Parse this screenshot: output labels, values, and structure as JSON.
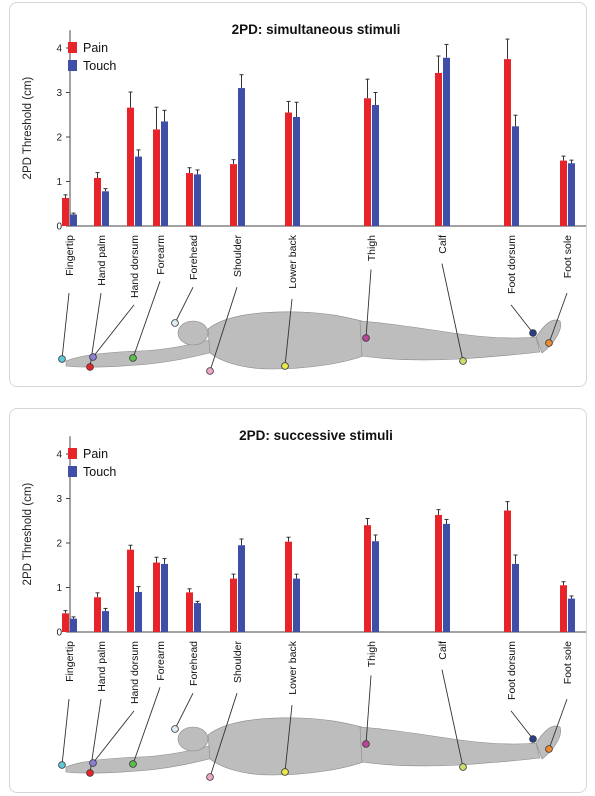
{
  "chart_data": [
    {
      "type": "bar",
      "title": "2PD: simultaneous stimuli",
      "ylabel": "2PD Threshold (cm)",
      "xlabel": "",
      "ylim": [
        0,
        4.4
      ],
      "yticks": [
        0,
        1,
        2,
        3,
        4
      ],
      "legend": "top-left",
      "grid": false,
      "categories": [
        "Fingertip",
        "Hand palm",
        "Hand dorsum",
        "Forearm",
        "Forehead",
        "Shoulder",
        "Lower back",
        "Thigh",
        "Calf",
        "Foot dorsum",
        "Foot sole"
      ],
      "series": [
        {
          "name": "Pain",
          "color": "#e8242b",
          "values": [
            0.63,
            1.08,
            2.66,
            2.17,
            1.19,
            1.39,
            2.55,
            2.87,
            3.44,
            3.75,
            1.47
          ],
          "errors": [
            0.07,
            0.12,
            0.35,
            0.5,
            0.12,
            0.1,
            0.25,
            0.43,
            0.38,
            0.45,
            0.1
          ]
        },
        {
          "name": "Touch",
          "color": "#3f4fa8",
          "values": [
            0.26,
            0.78,
            1.56,
            2.35,
            1.16,
            3.1,
            2.45,
            2.72,
            3.78,
            2.24,
            1.41
          ],
          "errors": [
            0.03,
            0.06,
            0.15,
            0.25,
            0.1,
            0.3,
            0.33,
            0.28,
            0.3,
            0.25,
            0.07
          ]
        }
      ]
    },
    {
      "type": "bar",
      "title": "2PD: successive stimuli",
      "ylabel": "2PD Threshold (cm)",
      "xlabel": "",
      "ylim": [
        0,
        4.4
      ],
      "yticks": [
        0,
        1,
        2,
        3,
        4
      ],
      "legend": "top-left",
      "grid": false,
      "categories": [
        "Fingertip",
        "Hand palm",
        "Hand dorsum",
        "Forearm",
        "Forehead",
        "Shoulder",
        "Lower back",
        "Thigh",
        "Calf",
        "Foot dorsum",
        "Foot sole"
      ],
      "series": [
        {
          "name": "Pain",
          "color": "#e8242b",
          "values": [
            0.42,
            0.78,
            1.85,
            1.56,
            0.89,
            1.2,
            2.03,
            2.4,
            2.63,
            2.73,
            1.05
          ],
          "errors": [
            0.06,
            0.1,
            0.1,
            0.12,
            0.08,
            0.1,
            0.1,
            0.15,
            0.12,
            0.2,
            0.08
          ]
        },
        {
          "name": "Touch",
          "color": "#3f4fa8",
          "values": [
            0.3,
            0.47,
            0.9,
            1.53,
            0.65,
            1.95,
            1.2,
            2.04,
            2.43,
            1.53,
            0.75
          ],
          "errors": [
            0.04,
            0.06,
            0.12,
            0.12,
            0.04,
            0.14,
            0.1,
            0.14,
            0.1,
            0.2,
            0.06
          ]
        }
      ]
    }
  ],
  "body_map": {
    "sites": [
      "Fingertip",
      "Hand palm",
      "Hand dorsum",
      "Forearm",
      "Forehead",
      "Shoulder",
      "Lower back",
      "Thigh",
      "Calf",
      "Foot dorsum",
      "Foot sole"
    ],
    "marker_colors": [
      "#5ec8d8",
      "#e8242b",
      "#8a7fd0",
      "#5cbf4a",
      "#ddeef5",
      "#f0a8c8",
      "#e8e84a",
      "#b8469a",
      "#c8e070",
      "#2a3f8a",
      "#f08a30"
    ]
  }
}
